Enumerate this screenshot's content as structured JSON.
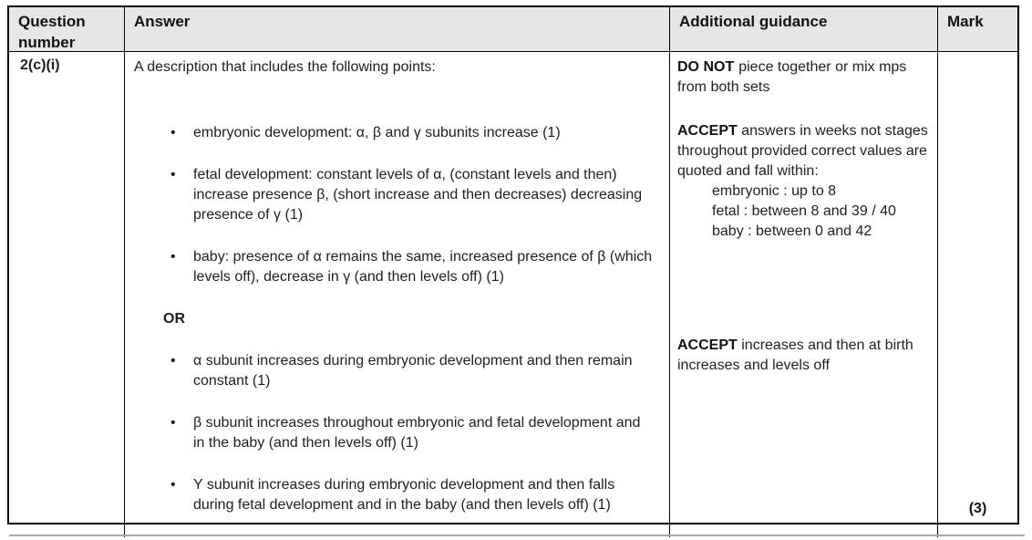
{
  "table": {
    "headers": {
      "question": "Question number",
      "answer": "Answer",
      "guidance": "Additional guidance",
      "mark": "Mark"
    },
    "row": {
      "question_number": "2(c)(i)",
      "answer": {
        "intro": "A description that includes the following points:",
        "set1": [
          "embryonic development: α, β and γ subunits increase (1)",
          "fetal development: constant levels of α, (constant levels and then) increase presence β, (short increase and then decreases) decreasing presence of γ (1)",
          "baby: presence of α remains the same, increased presence of β (which levels off), decrease in γ (and then levels off) (1)"
        ],
        "or_label": "OR",
        "set2": [
          "α subunit increases during embryonic development and then remain constant (1)",
          "β subunit increases throughout embryonic and fetal development and in the baby (and then levels off) (1)",
          "Y subunit increases during embryonic development and then falls during fetal development and in the baby (and then levels off) (1)"
        ]
      },
      "guidance": {
        "block1_bold": "DO NOT",
        "block1_text": "piece together or mix mps from both sets",
        "block2_bold": "ACCEPT",
        "block2_text": "answers in weeks not stages throughout provided correct values are quoted and fall within:",
        "block2_lines": [
          "embryonic : up to 8",
          "fetal : between 8 and 39 / 40",
          "baby : between 0 and 42"
        ],
        "block3_bold": "ACCEPT",
        "block3_text": "increases and then at birth increases and levels off"
      },
      "mark": "(3)"
    }
  }
}
